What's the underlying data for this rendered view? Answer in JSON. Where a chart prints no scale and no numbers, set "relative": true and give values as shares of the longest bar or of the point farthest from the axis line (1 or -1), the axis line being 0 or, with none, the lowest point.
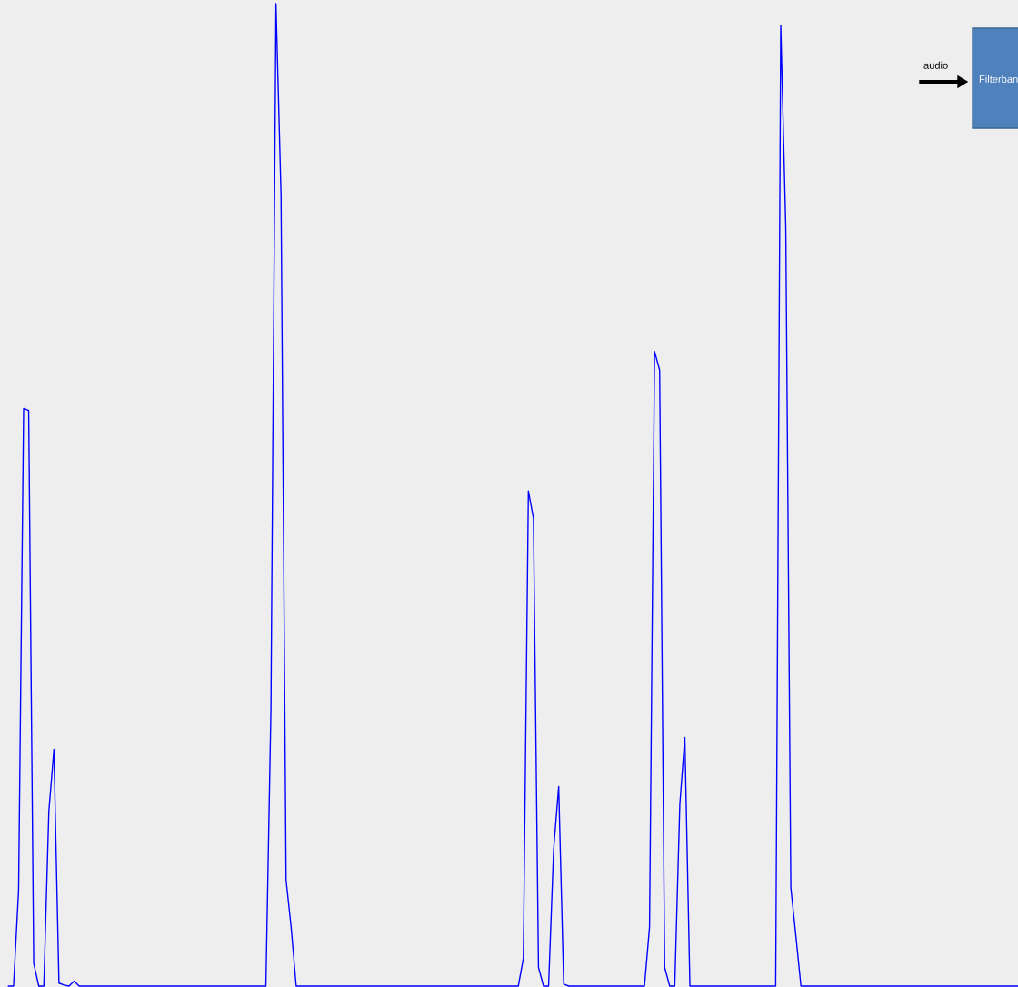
{
  "chart_data": {
    "type": "line",
    "relative": true,
    "color": "#0000ff",
    "grid": false,
    "legend": false,
    "marker": "none",
    "line_style": "solid",
    "categories": [
      null,
      null,
      null,
      null,
      null,
      null,
      null,
      null,
      null,
      null,
      null,
      null,
      null,
      null,
      null,
      null,
      null,
      null,
      null,
      null,
      null,
      null,
      null,
      null,
      null,
      null,
      null,
      null,
      null,
      null,
      null,
      null,
      null,
      null,
      null,
      null,
      null,
      null,
      null,
      null,
      null,
      null,
      null,
      null,
      null,
      null,
      null,
      null,
      null,
      null,
      null,
      null,
      null,
      null,
      null,
      null,
      null,
      null,
      null,
      null,
      null,
      null,
      null,
      null,
      null,
      null,
      null,
      null,
      null,
      null,
      null,
      null,
      null,
      null,
      null,
      null,
      null,
      null,
      null,
      null,
      null,
      null,
      null,
      null,
      null,
      null,
      null,
      null,
      null,
      null,
      null,
      null,
      null,
      null,
      null,
      null,
      null,
      null,
      null,
      null,
      null,
      null,
      null,
      null,
      null,
      null,
      null,
      null,
      null,
      null,
      null,
      null,
      null,
      null,
      null,
      null,
      null,
      null,
      null,
      null,
      null,
      null,
      null,
      null,
      null,
      null,
      null,
      null,
      null,
      null,
      null,
      null,
      null,
      null,
      null,
      null,
      null,
      null,
      null,
      null,
      null,
      null,
      null,
      null,
      null,
      null,
      null,
      null,
      null,
      null,
      null,
      null,
      null,
      null,
      null,
      null,
      null,
      null,
      null,
      null,
      null,
      null,
      null,
      null,
      null,
      null,
      null,
      null,
      null,
      null,
      null,
      null,
      null,
      null,
      null,
      null,
      null,
      null,
      null,
      null,
      null,
      null,
      null,
      null,
      null,
      null,
      null,
      null,
      null,
      null,
      null,
      null,
      null,
      null,
      null,
      null,
      null,
      null,
      null,
      null,
      null
    ],
    "values": [
      0,
      0,
      0.097,
      0.588,
      0.586,
      0.023,
      0,
      0,
      0.178,
      0.241,
      0.003,
      0.001,
      0,
      0.005,
      0,
      0,
      0,
      0,
      0,
      0,
      0,
      0,
      0,
      0,
      0,
      0,
      0,
      0,
      0,
      0,
      0,
      0,
      0,
      0,
      0,
      0,
      0,
      0,
      0,
      0,
      0,
      0,
      0,
      0,
      0,
      0,
      0,
      0,
      0,
      0,
      0,
      0,
      0.282,
      1,
      0.805,
      0.108,
      0.06,
      0,
      0,
      0,
      0,
      0,
      0,
      0,
      0,
      0,
      0,
      0,
      0,
      0,
      0,
      0,
      0,
      0,
      0,
      0,
      0,
      0,
      0,
      0,
      0,
      0,
      0,
      0,
      0,
      0,
      0,
      0,
      0,
      0,
      0,
      0,
      0,
      0,
      0,
      0,
      0,
      0,
      0,
      0,
      0,
      0,
      0.028,
      0.504,
      0.476,
      0.019,
      0,
      0,
      0.139,
      0.203,
      0.002,
      0,
      0,
      0,
      0,
      0,
      0,
      0,
      0,
      0,
      0,
      0,
      0,
      0,
      0,
      0,
      0,
      0.06,
      0.646,
      0.627,
      0.019,
      0,
      0,
      0.185,
      0.253,
      0,
      0,
      0,
      0,
      0,
      0,
      0,
      0,
      0,
      0,
      0,
      0,
      0,
      0,
      0,
      0,
      0,
      0,
      0.978,
      0.772,
      0.1,
      0.051,
      0,
      0,
      0,
      0,
      0,
      0,
      0,
      0,
      0,
      0,
      0,
      0,
      0,
      0,
      0,
      0,
      0,
      0,
      0,
      0,
      0,
      0,
      0,
      0,
      0,
      0,
      0,
      0,
      0,
      0,
      0,
      0,
      0,
      0,
      0,
      0,
      0,
      0,
      0,
      0,
      0,
      0,
      0,
      0
    ],
    "annotations": [
      "audio",
      "Filterban"
    ]
  }
}
